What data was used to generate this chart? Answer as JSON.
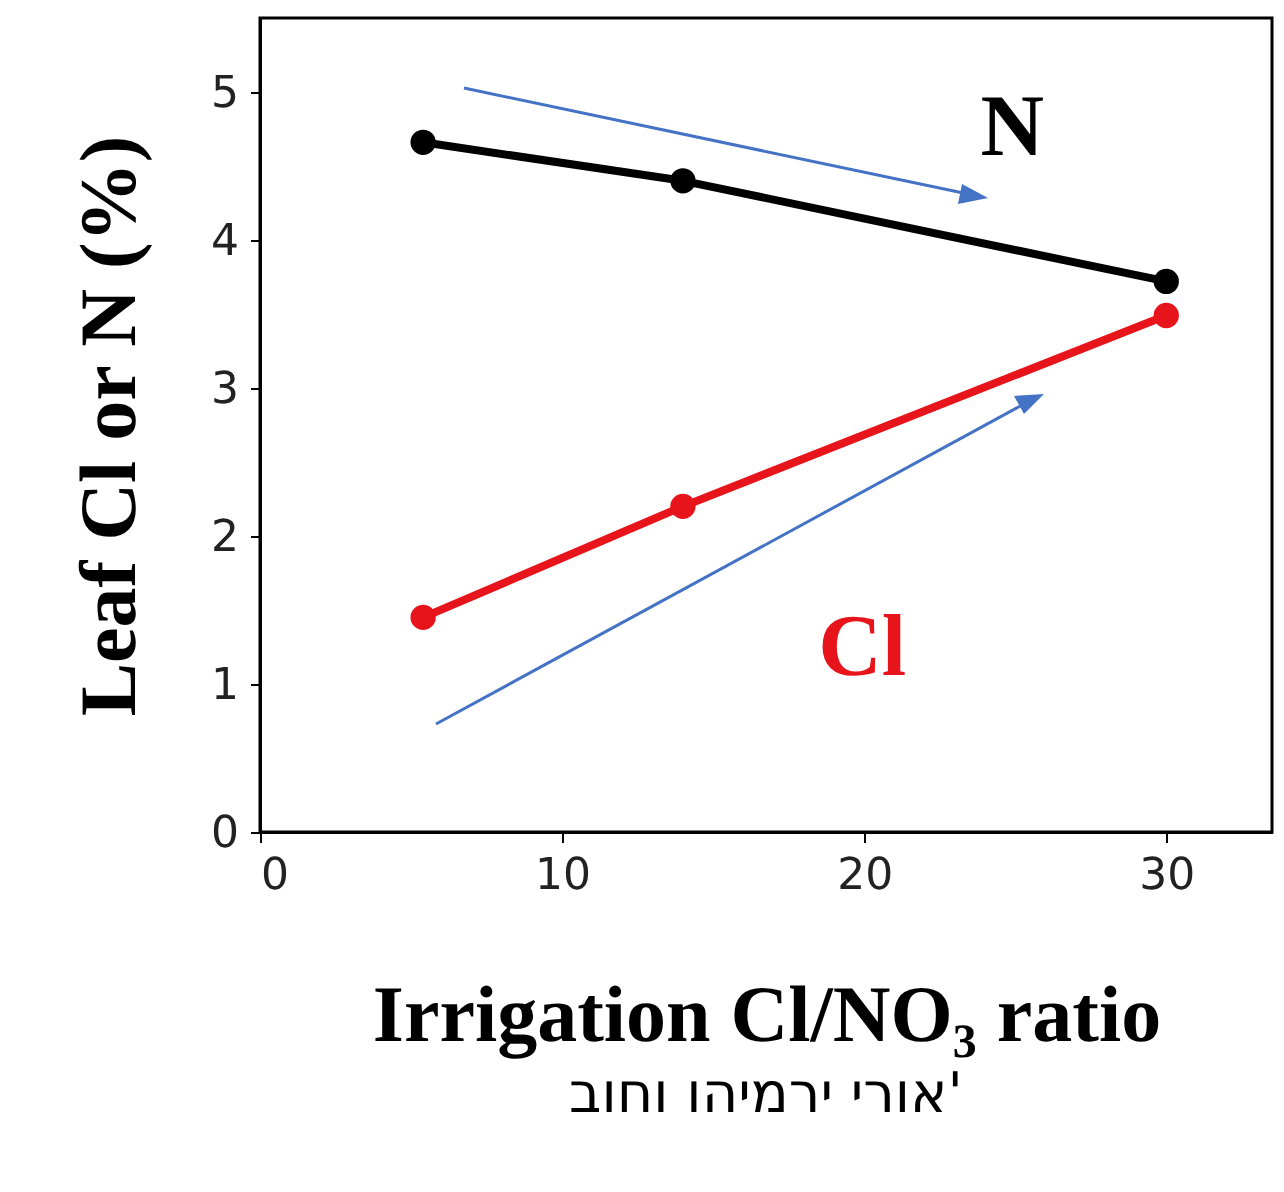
{
  "chart_data": {
    "type": "line",
    "xlabel": "Irrigation Cl/NO₃ ratio",
    "ylabel": "Leaf Cl or N (%)",
    "x": [
      5.4,
      14,
      30
    ],
    "series": [
      {
        "name": "N",
        "color": "#000000",
        "values": [
          4.66,
          4.4,
          3.72
        ]
      },
      {
        "name": "Cl",
        "color": "#e8141b",
        "values": [
          1.45,
          2.2,
          3.49
        ]
      }
    ],
    "xlim": [
      0,
      33.5
    ],
    "xticks": [
      0,
      10,
      20,
      30
    ],
    "ylim": [
      0,
      5.5
    ],
    "yticks": [
      0,
      1,
      2,
      3,
      4,
      5
    ],
    "grid": false,
    "marker": "circle",
    "line_style": "solid",
    "annotations": [
      "אורי ירמיהו וחוב'"
    ]
  }
}
